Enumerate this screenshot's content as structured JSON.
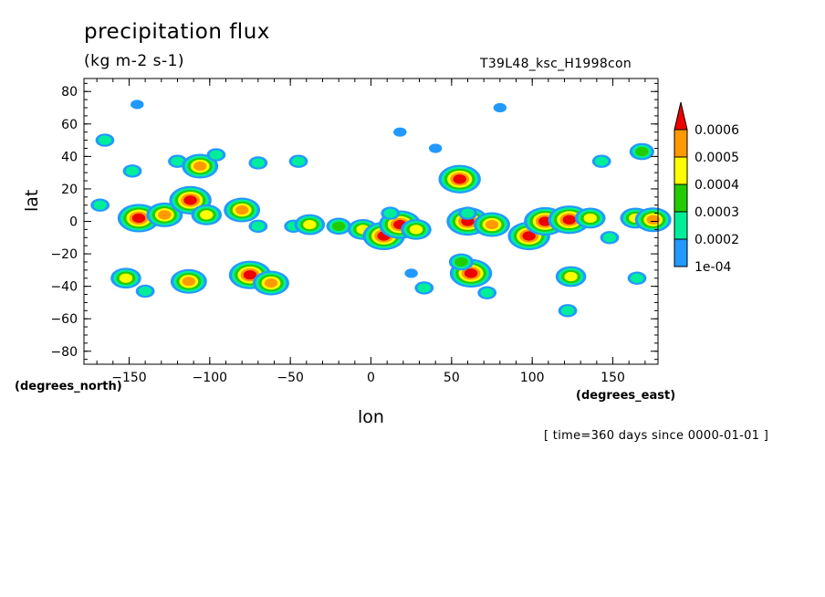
{
  "chart_data": {
    "type": "heatmap",
    "title": "precipitation flux",
    "units": "(kg m-2 s-1)",
    "run_label": "T39L48_ksc_H1998con",
    "xlabel": "lon",
    "ylabel": "lat",
    "x_units_label": "(degrees_east)",
    "y_units_label": "(degrees_north)",
    "time_label": "[ time=360 days since 0000-01-01 ]",
    "xlim": [
      -178,
      178
    ],
    "ylim": [
      -88,
      88
    ],
    "xticks": [
      -150,
      -100,
      -50,
      0,
      50,
      100,
      150
    ],
    "yticks": [
      -80,
      -60,
      -40,
      -20,
      0,
      20,
      40,
      60,
      80
    ],
    "colorbar": {
      "levels": [
        "1e-04",
        "0.0002",
        "0.0003",
        "0.0004",
        "0.0005",
        "0.0006"
      ],
      "colors": [
        "#2299ff",
        "#00ee99",
        "#22cc00",
        "#ffff00",
        "#ff9900",
        "#ee0000"
      ]
    },
    "cells": [
      {
        "lon": -165,
        "lat": 50,
        "level": 2
      },
      {
        "lon": -168,
        "lat": 10,
        "level": 2
      },
      {
        "lon": -148,
        "lat": 31,
        "level": 2
      },
      {
        "lon": -144,
        "lat": 2,
        "level": 6
      },
      {
        "lon": -128,
        "lat": 4,
        "level": 5
      },
      {
        "lon": -120,
        "lat": 37,
        "level": 2
      },
      {
        "lon": -112,
        "lat": 13,
        "level": 6
      },
      {
        "lon": -106,
        "lat": 34,
        "level": 5
      },
      {
        "lon": -102,
        "lat": 4,
        "level": 4
      },
      {
        "lon": -96,
        "lat": 41,
        "level": 2
      },
      {
        "lon": -80,
        "lat": 7,
        "level": 5
      },
      {
        "lon": -70,
        "lat": 36,
        "level": 2
      },
      {
        "lon": -70,
        "lat": -3,
        "level": 2
      },
      {
        "lon": -48,
        "lat": -3,
        "level": 2
      },
      {
        "lon": -38,
        "lat": -2,
        "level": 4
      },
      {
        "lon": -20,
        "lat": -3,
        "level": 3
      },
      {
        "lon": -5,
        "lat": -5,
        "level": 4
      },
      {
        "lon": 8,
        "lat": -9,
        "level": 6
      },
      {
        "lon": 18,
        "lat": -2,
        "level": 6
      },
      {
        "lon": 28,
        "lat": -5,
        "level": 4
      },
      {
        "lon": 12,
        "lat": 5,
        "level": 2
      },
      {
        "lon": 55,
        "lat": 26,
        "level": 6
      },
      {
        "lon": 60,
        "lat": 0,
        "level": 6
      },
      {
        "lon": 75,
        "lat": -2,
        "level": 5
      },
      {
        "lon": 98,
        "lat": -9,
        "level": 6
      },
      {
        "lon": 108,
        "lat": 0,
        "level": 6
      },
      {
        "lon": 123,
        "lat": 1,
        "level": 6
      },
      {
        "lon": 136,
        "lat": 2,
        "level": 4
      },
      {
        "lon": 148,
        "lat": -10,
        "level": 2
      },
      {
        "lon": 164,
        "lat": 2,
        "level": 4
      },
      {
        "lon": 175,
        "lat": 1,
        "level": 5
      },
      {
        "lon": 168,
        "lat": 43,
        "level": 3
      },
      {
        "lon": 143,
        "lat": 37,
        "level": 2
      },
      {
        "lon": 60,
        "lat": 5,
        "level": 2
      },
      {
        "lon": 62,
        "lat": -32,
        "level": 6
      },
      {
        "lon": 56,
        "lat": -25,
        "level": 3
      },
      {
        "lon": 72,
        "lat": -44,
        "level": 2
      },
      {
        "lon": 33,
        "lat": -41,
        "level": 2
      },
      {
        "lon": -152,
        "lat": -35,
        "level": 4
      },
      {
        "lon": -140,
        "lat": -43,
        "level": 2
      },
      {
        "lon": -113,
        "lat": -37,
        "level": 5
      },
      {
        "lon": -75,
        "lat": -33,
        "level": 6
      },
      {
        "lon": -62,
        "lat": -38,
        "level": 5
      },
      {
        "lon": 124,
        "lat": -34,
        "level": 4
      },
      {
        "lon": 122,
        "lat": -55,
        "level": 2
      },
      {
        "lon": 18,
        "lat": 55,
        "level": 1
      },
      {
        "lon": 80,
        "lat": 70,
        "level": 1
      },
      {
        "lon": -145,
        "lat": 72,
        "level": 1
      },
      {
        "lon": 40,
        "lat": 45,
        "level": 1
      },
      {
        "lon": -45,
        "lat": 37,
        "level": 2
      },
      {
        "lon": 25,
        "lat": -32,
        "level": 1
      },
      {
        "lon": 165,
        "lat": -35,
        "level": 2
      }
    ]
  }
}
